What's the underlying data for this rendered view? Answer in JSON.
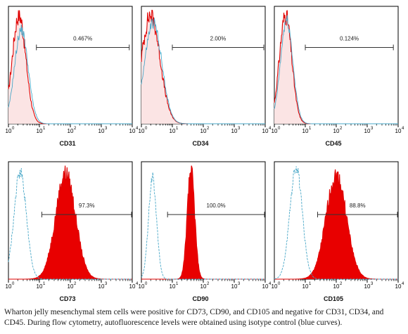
{
  "colors": {
    "marker": "#e00000",
    "isotype": "#4aa8c8",
    "fill_positive": "#e80000",
    "fill_negative": "#fbe4e4",
    "axis": "#000000"
  },
  "caption": "Wharton jelly mesenchymal stem cells were positive for CD73, CD90, and CD105 and negative for CD31, CD34, and CD45. During flow cytometry, autofluorescence levels were obtained using isotype control (blue curves).",
  "chart_data": [
    {
      "type": "area",
      "title": "CD31",
      "xlabel": "CD31",
      "ylabel": "",
      "x_scale": "log",
      "xlim": [
        1,
        10000
      ],
      "x_ticks": [
        "10",
        "10",
        "10",
        "10",
        "10"
      ],
      "x_tick_exponents": [
        "0",
        "1",
        "2",
        "3",
        "4"
      ],
      "marker": "negative",
      "gate_label": "0.467%",
      "gate_range": [
        8,
        8000
      ],
      "series": [
        {
          "key": "marker",
          "peak_x": 2.2,
          "width": 0.22,
          "height": 0.95
        },
        {
          "key": "isotype",
          "peak_x": 2.6,
          "width": 0.22,
          "height": 0.82
        }
      ]
    },
    {
      "type": "area",
      "title": "CD34",
      "xlabel": "CD34",
      "ylabel": "",
      "x_scale": "log",
      "xlim": [
        1,
        10000
      ],
      "x_ticks": [
        "10",
        "10",
        "10",
        "10",
        "10"
      ],
      "x_tick_exponents": [
        "0",
        "1",
        "2",
        "3",
        "4"
      ],
      "marker": "negative",
      "gate_label": "2.00%",
      "gate_range": [
        10,
        9000
      ],
      "series": [
        {
          "key": "marker",
          "peak_x": 2.0,
          "width": 0.3,
          "height": 0.95
        },
        {
          "key": "isotype",
          "peak_x": 2.4,
          "width": 0.28,
          "height": 0.88
        }
      ]
    },
    {
      "type": "area",
      "title": "CD45",
      "xlabel": "CD45",
      "ylabel": "",
      "x_scale": "log",
      "xlim": [
        1,
        10000
      ],
      "x_ticks": [
        "10",
        "10",
        "10",
        "10",
        "10"
      ],
      "x_tick_exponents": [
        "0",
        "1",
        "2",
        "3",
        "4"
      ],
      "marker": "negative",
      "gate_label": "0.124%",
      "gate_range": [
        10,
        7000
      ],
      "series": [
        {
          "key": "marker",
          "peak_x": 2.3,
          "width": 0.2,
          "height": 0.95
        },
        {
          "key": "isotype",
          "peak_x": 2.5,
          "width": 0.2,
          "height": 0.9
        }
      ]
    },
    {
      "type": "area",
      "title": "CD73",
      "xlabel": "CD73",
      "ylabel": "",
      "x_scale": "log",
      "xlim": [
        1,
        10000
      ],
      "x_ticks": [
        "10",
        "10",
        "10",
        "10",
        "10"
      ],
      "x_tick_exponents": [
        "0",
        "1",
        "2",
        "3",
        "4"
      ],
      "marker": "positive",
      "gate_label": "97.3%",
      "gate_range": [
        12,
        9500
      ],
      "series": [
        {
          "key": "marker",
          "peak_x": 70,
          "width": 0.32,
          "height": 0.92
        },
        {
          "key": "isotype",
          "peak_x": 2.4,
          "width": 0.2,
          "height": 0.93
        }
      ]
    },
    {
      "type": "area",
      "title": "CD90",
      "xlabel": "CD90",
      "ylabel": "",
      "x_scale": "log",
      "xlim": [
        1,
        10000
      ],
      "x_ticks": [
        "10",
        "10",
        "10",
        "10",
        "10"
      ],
      "x_tick_exponents": [
        "0",
        "1",
        "2",
        "3",
        "4"
      ],
      "marker": "positive",
      "gate_label": "100.0%",
      "gate_range": [
        7,
        9500
      ],
      "series": [
        {
          "key": "marker",
          "peak_x": 40,
          "width": 0.12,
          "height": 0.95
        },
        {
          "key": "isotype",
          "peak_x": 2.3,
          "width": 0.13,
          "height": 0.88
        }
      ]
    },
    {
      "type": "area",
      "title": "CD105",
      "xlabel": "CD105",
      "ylabel": "",
      "x_scale": "log",
      "xlim": [
        1,
        10000
      ],
      "x_ticks": [
        "10",
        "10",
        "10",
        "10",
        "10"
      ],
      "x_tick_exponents": [
        "0",
        "1",
        "2",
        "3",
        "4"
      ],
      "marker": "positive",
      "gate_label": "88.8%",
      "gate_range": [
        25,
        9500
      ],
      "series": [
        {
          "key": "marker",
          "peak_x": 100,
          "width": 0.33,
          "height": 0.9
        },
        {
          "key": "isotype",
          "peak_x": 5,
          "width": 0.2,
          "height": 0.98
        }
      ]
    }
  ]
}
